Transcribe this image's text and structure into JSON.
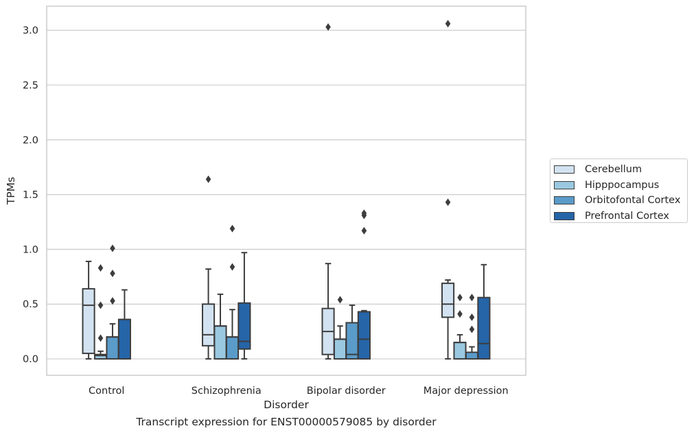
{
  "caption": "Transcript expression for ENST00000579085 by disorder",
  "chart_data": {
    "type": "box",
    "xlabel": "Disorder",
    "ylabel": "TPMs",
    "ylim": [
      -0.15,
      3.22
    ],
    "y_ticks": [
      "0.0",
      "0.5",
      "1.0",
      "1.5",
      "2.0",
      "2.5",
      "3.0"
    ],
    "y_tick_values": [
      0,
      0.5,
      1.0,
      1.5,
      2.0,
      2.5,
      3.0
    ],
    "grid": "horizontal",
    "legend_position": "right",
    "categories": [
      "Control",
      "Schizophrenia",
      "Bipolar disorder",
      "Major depression"
    ],
    "series": [
      {
        "name": "Cerebellum",
        "color": "#d2e2f0",
        "boxes": [
          {
            "whisker_low": 0.0,
            "q1": 0.05,
            "median": 0.49,
            "q3": 0.64,
            "whisker_high": 0.89,
            "outliers": []
          },
          {
            "whisker_low": 0.0,
            "q1": 0.12,
            "median": 0.22,
            "q3": 0.5,
            "whisker_high": 0.82,
            "outliers": [
              1.64
            ]
          },
          {
            "whisker_low": 0.0,
            "q1": 0.04,
            "median": 0.25,
            "q3": 0.46,
            "whisker_high": 0.87,
            "outliers": [
              3.03
            ]
          },
          {
            "whisker_low": 0.0,
            "q1": 0.38,
            "median": 0.5,
            "q3": 0.69,
            "whisker_high": 0.72,
            "outliers": [
              1.43,
              3.06
            ]
          }
        ]
      },
      {
        "name": "Hipppocampus",
        "color": "#9ac8e0",
        "boxes": [
          {
            "whisker_low": 0.0,
            "q1": 0.0,
            "median": 0.03,
            "q3": 0.04,
            "whisker_high": 0.07,
            "outliers": [
              0.19,
              0.49,
              0.83
            ]
          },
          {
            "whisker_low": 0.0,
            "q1": 0.0,
            "median": 0.3,
            "q3": 0.3,
            "whisker_high": 0.59,
            "outliers": []
          },
          {
            "whisker_low": 0.0,
            "q1": 0.0,
            "median": 0.18,
            "q3": 0.18,
            "whisker_high": 0.3,
            "outliers": [
              0.54
            ]
          },
          {
            "whisker_low": 0.0,
            "q1": 0.0,
            "median": 0.15,
            "q3": 0.15,
            "whisker_high": 0.22,
            "outliers": [
              0.41,
              0.56
            ]
          }
        ]
      },
      {
        "name": "Orbitofontal Cortex",
        "color": "#5a9bc9",
        "boxes": [
          {
            "whisker_low": 0.0,
            "q1": 0.0,
            "median": 0.2,
            "q3": 0.2,
            "whisker_high": 0.32,
            "outliers": [
              0.53,
              0.78,
              1.01
            ]
          },
          {
            "whisker_low": 0.0,
            "q1": 0.0,
            "median": 0.2,
            "q3": 0.2,
            "whisker_high": 0.45,
            "outliers": [
              0.84,
              1.19
            ]
          },
          {
            "whisker_low": 0.0,
            "q1": 0.0,
            "median": 0.04,
            "q3": 0.33,
            "whisker_high": 0.49,
            "outliers": []
          },
          {
            "whisker_low": 0.0,
            "q1": 0.0,
            "median": 0.06,
            "q3": 0.06,
            "whisker_high": 0.11,
            "outliers": [
              0.27,
              0.38,
              0.56
            ]
          }
        ]
      },
      {
        "name": "Prefrontal Cortex",
        "color": "#2565a8",
        "boxes": [
          {
            "whisker_low": 0.0,
            "q1": 0.0,
            "median": 0.36,
            "q3": 0.36,
            "whisker_high": 0.63,
            "outliers": []
          },
          {
            "whisker_low": 0.0,
            "q1": 0.09,
            "median": 0.16,
            "q3": 0.51,
            "whisker_high": 0.97,
            "outliers": []
          },
          {
            "whisker_low": 0.0,
            "q1": 0.0,
            "median": 0.18,
            "q3": 0.43,
            "whisker_high": 0.44,
            "outliers": [
              1.17,
              1.31,
              1.33
            ]
          },
          {
            "whisker_low": 0.0,
            "q1": 0.0,
            "median": 0.14,
            "q3": 0.56,
            "whisker_high": 0.86,
            "outliers": []
          }
        ]
      }
    ]
  }
}
